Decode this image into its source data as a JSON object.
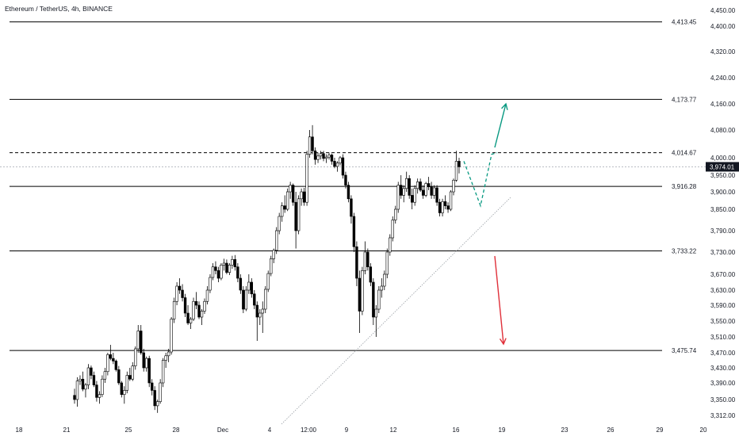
{
  "header": {
    "title": "Ethereum / TetherUS, 4h, BINANCE"
  },
  "colors": {
    "background": "#ffffff",
    "candle": "#000000",
    "level_line": "#000000",
    "up_arrow": "#089981",
    "down_arrow": "#e0303a",
    "dashed_path": "#089981",
    "trendline": "#9aa0a6",
    "price_label_bg": "#131722",
    "axis_text": "#131722"
  },
  "chart_data": {
    "type": "candlestick",
    "symbol": "Ethereum / TetherUS",
    "interval": "4h",
    "exchange": "BINANCE",
    "current_price": "3,974.01",
    "current_price_value": 3974.01,
    "ylim": [
      3290,
      4470
    ],
    "y_ticks": [
      "4,450.00",
      "4,400.00",
      "4,320.00",
      "4,240.00",
      "4,160.00",
      "4,080.00",
      "4,000.00",
      "3,950.00",
      "3,900.00",
      "3,850.00",
      "3,790.00",
      "3,730.00",
      "3,670.00",
      "3,630.00",
      "3,590.00",
      "3,550.00",
      "3,510.00",
      "3,470.00",
      "3,430.00",
      "3,390.00",
      "3,350.00",
      "3,312.00"
    ],
    "x_ticks": [
      "18",
      "21",
      "25",
      "28",
      "Dec",
      "4",
      "12:00",
      "9",
      "12",
      "16",
      "19",
      "23",
      "26",
      "29",
      "20"
    ],
    "horizontal_levels": [
      {
        "label": "4,413.45",
        "value": 4413.45,
        "style": "solid"
      },
      {
        "label": "4,173.77",
        "value": 4173.77,
        "style": "solid"
      },
      {
        "label": "4,014.67",
        "value": 4014.67,
        "style": "dashed"
      },
      {
        "label": "3,916.28",
        "value": 3916.28,
        "style": "solid"
      },
      {
        "label": "3,733.22",
        "value": 3733.22,
        "style": "solid"
      },
      {
        "label": "3,475.74",
        "value": 3475.74,
        "style": "solid"
      }
    ],
    "projection": {
      "dashed_path_prices": [
        3990,
        3860,
        4010
      ],
      "up_target": 4160,
      "down_target": 3510
    },
    "candles": [
      [
        3360,
        3376,
        3340,
        3350
      ],
      [
        3350,
        3405,
        3333,
        3395
      ],
      [
        3395,
        3410,
        3385,
        3400
      ],
      [
        3400,
        3420,
        3370,
        3375
      ],
      [
        3375,
        3390,
        3355,
        3385
      ],
      [
        3385,
        3440,
        3375,
        3430
      ],
      [
        3430,
        3436,
        3400,
        3410
      ],
      [
        3410,
        3420,
        3380,
        3385
      ],
      [
        3385,
        3395,
        3345,
        3355
      ],
      [
        3355,
        3370,
        3340,
        3362
      ],
      [
        3362,
        3410,
        3356,
        3400
      ],
      [
        3400,
        3430,
        3390,
        3420
      ],
      [
        3420,
        3470,
        3410,
        3465
      ],
      [
        3465,
        3490,
        3450,
        3455
      ],
      [
        3455,
        3470,
        3440,
        3448
      ],
      [
        3448,
        3452,
        3420,
        3425
      ],
      [
        3425,
        3435,
        3385,
        3390
      ],
      [
        3390,
        3395,
        3355,
        3362
      ],
      [
        3362,
        3382,
        3340,
        3372
      ],
      [
        3372,
        3420,
        3365,
        3410
      ],
      [
        3410,
        3430,
        3395,
        3400
      ],
      [
        3400,
        3445,
        3395,
        3435
      ],
      [
        3435,
        3486,
        3425,
        3480
      ],
      [
        3480,
        3540,
        3470,
        3525
      ],
      [
        3525,
        3540,
        3465,
        3470
      ],
      [
        3470,
        3480,
        3420,
        3430
      ],
      [
        3430,
        3460,
        3420,
        3455
      ],
      [
        3455,
        3462,
        3380,
        3390
      ],
      [
        3390,
        3400,
        3360,
        3372
      ],
      [
        3372,
        3382,
        3325,
        3335
      ],
      [
        3335,
        3350,
        3318,
        3345
      ],
      [
        3345,
        3400,
        3340,
        3390
      ],
      [
        3390,
        3456,
        3380,
        3450
      ],
      [
        3450,
        3470,
        3430,
        3462
      ],
      [
        3462,
        3480,
        3445,
        3472
      ],
      [
        3472,
        3560,
        3465,
        3555
      ],
      [
        3555,
        3610,
        3545,
        3600
      ],
      [
        3600,
        3650,
        3590,
        3640
      ],
      [
        3640,
        3660,
        3620,
        3630
      ],
      [
        3630,
        3645,
        3600,
        3610
      ],
      [
        3610,
        3620,
        3560,
        3570
      ],
      [
        3570,
        3590,
        3540,
        3545
      ],
      [
        3545,
        3560,
        3530,
        3555
      ],
      [
        3555,
        3610,
        3550,
        3600
      ],
      [
        3600,
        3625,
        3580,
        3590
      ],
      [
        3590,
        3600,
        3555,
        3560
      ],
      [
        3560,
        3580,
        3540,
        3575
      ],
      [
        3575,
        3608,
        3568,
        3600
      ],
      [
        3600,
        3640,
        3592,
        3630
      ],
      [
        3630,
        3670,
        3622,
        3662
      ],
      [
        3662,
        3700,
        3655,
        3690
      ],
      [
        3690,
        3705,
        3670,
        3680
      ],
      [
        3680,
        3690,
        3650,
        3660
      ],
      [
        3660,
        3700,
        3655,
        3695
      ],
      [
        3695,
        3712,
        3680,
        3700
      ],
      [
        3700,
        3710,
        3670,
        3675
      ],
      [
        3675,
        3700,
        3668,
        3695
      ],
      [
        3695,
        3720,
        3685,
        3710
      ],
      [
        3710,
        3722,
        3680,
        3690
      ],
      [
        3690,
        3700,
        3650,
        3660
      ],
      [
        3660,
        3670,
        3620,
        3630
      ],
      [
        3630,
        3640,
        3570,
        3580
      ],
      [
        3580,
        3640,
        3575,
        3630
      ],
      [
        3630,
        3670,
        3620,
        3650
      ],
      [
        3650,
        3660,
        3610,
        3620
      ],
      [
        3620,
        3630,
        3580,
        3590
      ],
      [
        3590,
        3600,
        3500,
        3560
      ],
      [
        3560,
        3580,
        3540,
        3570
      ],
      [
        3570,
        3600,
        3520,
        3580
      ],
      [
        3580,
        3640,
        3570,
        3632
      ],
      [
        3632,
        3680,
        3625,
        3672
      ],
      [
        3672,
        3720,
        3665,
        3712
      ],
      [
        3712,
        3740,
        3700,
        3735
      ],
      [
        3735,
        3800,
        3725,
        3790
      ],
      [
        3790,
        3840,
        3780,
        3830
      ],
      [
        3830,
        3870,
        3815,
        3860
      ],
      [
        3860,
        3890,
        3840,
        3850
      ],
      [
        3850,
        3910,
        3845,
        3900
      ],
      [
        3900,
        3930,
        3880,
        3920
      ],
      [
        3920,
        3925,
        3860,
        3870
      ],
      [
        3870,
        3900,
        3740,
        3790
      ],
      [
        3790,
        3890,
        3780,
        3880
      ],
      [
        3880,
        3910,
        3860,
        3900
      ],
      [
        3900,
        3912,
        3860,
        3870
      ],
      [
        3870,
        4020,
        3860,
        4010
      ],
      [
        4010,
        4080,
        4000,
        4060
      ],
      [
        4060,
        4095,
        4010,
        4020
      ],
      [
        4020,
        4030,
        3980,
        3995
      ],
      [
        3995,
        4015,
        3985,
        4005
      ],
      [
        4005,
        4020,
        3995,
        4012
      ],
      [
        4012,
        4020,
        3990,
        3998
      ],
      [
        3998,
        4010,
        3985,
        4002
      ],
      [
        4002,
        4015,
        3995,
        4008
      ],
      [
        4008,
        4012,
        3980,
        3990
      ],
      [
        3990,
        4000,
        3970,
        3975
      ],
      [
        3975,
        3990,
        3960,
        3985
      ],
      [
        3985,
        4005,
        3978,
        4000
      ],
      [
        4000,
        4010,
        3940,
        3950
      ],
      [
        3950,
        3960,
        3910,
        3920
      ],
      [
        3920,
        3930,
        3870,
        3880
      ],
      [
        3880,
        3890,
        3810,
        3830
      ],
      [
        3830,
        3840,
        3730,
        3745
      ],
      [
        3745,
        3760,
        3640,
        3660
      ],
      [
        3660,
        3680,
        3520,
        3575
      ],
      [
        3575,
        3690,
        3565,
        3680
      ],
      [
        3680,
        3760,
        3670,
        3730
      ],
      [
        3730,
        3740,
        3680,
        3690
      ],
      [
        3690,
        3700,
        3640,
        3650
      ],
      [
        3650,
        3660,
        3540,
        3560
      ],
      [
        3560,
        3590,
        3510,
        3580
      ],
      [
        3580,
        3640,
        3570,
        3630
      ],
      [
        3630,
        3660,
        3610,
        3640
      ],
      [
        3640,
        3680,
        3630,
        3670
      ],
      [
        3670,
        3740,
        3660,
        3730
      ],
      [
        3730,
        3780,
        3720,
        3770
      ],
      [
        3770,
        3830,
        3760,
        3820
      ],
      [
        3820,
        3860,
        3810,
        3850
      ],
      [
        3850,
        3930,
        3840,
        3920
      ],
      [
        3920,
        3950,
        3880,
        3890
      ],
      [
        3890,
        3920,
        3870,
        3910
      ],
      [
        3910,
        3960,
        3900,
        3940
      ],
      [
        3940,
        3950,
        3880,
        3890
      ],
      [
        3890,
        3910,
        3850,
        3870
      ],
      [
        3870,
        3920,
        3860,
        3910
      ],
      [
        3910,
        3940,
        3895,
        3930
      ],
      [
        3930,
        3940,
        3900,
        3905
      ],
      [
        3905,
        3920,
        3880,
        3890
      ],
      [
        3890,
        3930,
        3885,
        3925
      ],
      [
        3925,
        3945,
        3905,
        3915
      ],
      [
        3915,
        3930,
        3880,
        3890
      ],
      [
        3890,
        3920,
        3880,
        3912
      ],
      [
        3912,
        3920,
        3860,
        3870
      ],
      [
        3870,
        3880,
        3830,
        3840
      ],
      [
        3840,
        3880,
        3830,
        3872
      ],
      [
        3872,
        3890,
        3850,
        3860
      ],
      [
        3860,
        3870,
        3840,
        3850
      ],
      [
        3850,
        3905,
        3845,
        3900
      ],
      [
        3900,
        3940,
        3890,
        3935
      ],
      [
        3935,
        4020,
        3930,
        3990
      ],
      [
        3990,
        4000,
        3955,
        3974.01
      ]
    ]
  }
}
